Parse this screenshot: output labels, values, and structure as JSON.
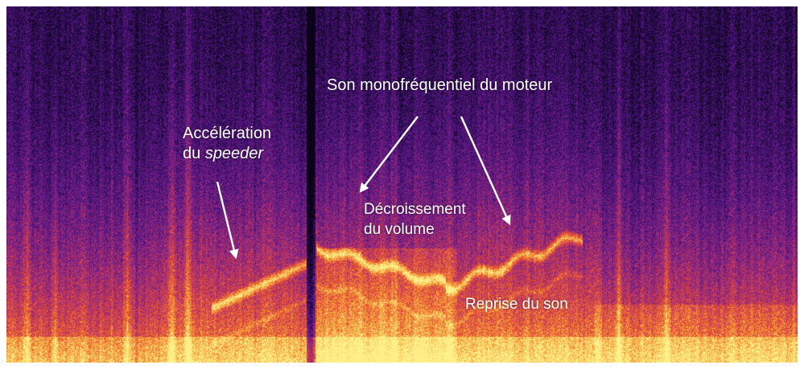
{
  "chart_data": {
    "type": "heatmap",
    "title": "",
    "xlabel": "",
    "ylabel": "",
    "colormap": [
      "#0b0418",
      "#3a0f6e",
      "#6c1d8a",
      "#b2306d",
      "#e8502f",
      "#f9a53a",
      "#fff18a"
    ],
    "annotations": {
      "engine_tone": "Son monofréquentiel du moteur",
      "acceleration_line1": "Accélération",
      "acceleration_line2_prefix": "du ",
      "acceleration_line2_em": "speeder",
      "volume_decrease_line1": "Décroissement",
      "volume_decrease_line2": "du volume",
      "sound_resumes": "Reprise du son"
    }
  }
}
